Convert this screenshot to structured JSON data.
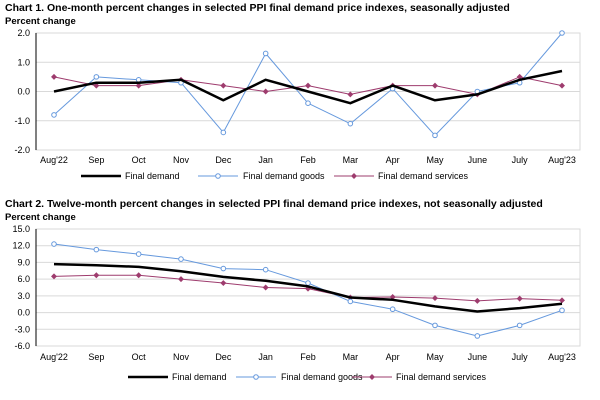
{
  "colors": {
    "total": "#000000",
    "goods": "#6699dd",
    "services": "#9e3c6e",
    "grid": "#d9d9d9",
    "axis": "#000000"
  },
  "chart_data": [
    {
      "type": "line",
      "title": "Chart 1. One-month percent changes in selected PPI final demand price indexes, seasonally adjusted",
      "ylabel": "Percent change",
      "categories": [
        "Aug'22",
        "Sep",
        "Oct",
        "Nov",
        "Dec",
        "Jan",
        "Feb",
        "Mar",
        "Apr",
        "May",
        "June",
        "July",
        "Aug'23"
      ],
      "ylim": [
        -2.0,
        2.0
      ],
      "yticks": [
        "2.0",
        "1.0",
        "0.0",
        "-1.0",
        "-2.0"
      ],
      "yticks_values": [
        2,
        1,
        0,
        -1,
        -2
      ],
      "grid": true,
      "legend_position": "bottom",
      "series": [
        {
          "name": "Final demand",
          "key": "total",
          "values": [
            0.0,
            0.3,
            0.3,
            0.4,
            -0.3,
            0.4,
            0.0,
            -0.4,
            0.2,
            -0.3,
            -0.1,
            0.4,
            0.7
          ]
        },
        {
          "name": "Final demand goods",
          "key": "goods",
          "values": [
            -0.8,
            0.5,
            0.4,
            0.3,
            -1.4,
            1.3,
            -0.4,
            -1.1,
            0.1,
            -1.5,
            0.0,
            0.3,
            2.0
          ]
        },
        {
          "name": "Final demand services",
          "key": "services",
          "values": [
            0.5,
            0.2,
            0.2,
            0.4,
            0.2,
            0.0,
            0.2,
            -0.1,
            0.2,
            0.2,
            -0.1,
            0.5,
            0.2
          ]
        }
      ]
    },
    {
      "type": "line",
      "title": "Chart 2. Twelve-month percent changes in selected PPI final demand price indexes, not seasonally adjusted",
      "ylabel": "Percent change",
      "categories": [
        "Aug'22",
        "Sep",
        "Oct",
        "Nov",
        "Dec",
        "Jan",
        "Feb",
        "Mar",
        "Apr",
        "May",
        "June",
        "July",
        "Aug'23"
      ],
      "ylim": [
        -6.0,
        15.0
      ],
      "yticks": [
        "15.0",
        "12.0",
        "9.0",
        "6.0",
        "3.0",
        "0.0",
        "-3.0",
        "-6.0"
      ],
      "yticks_values": [
        15,
        12,
        9,
        6,
        3,
        0,
        -3,
        -6
      ],
      "grid": true,
      "legend_position": "bottom",
      "series": [
        {
          "name": "Final demand",
          "key": "total",
          "values": [
            8.7,
            8.5,
            8.2,
            7.4,
            6.4,
            5.7,
            4.7,
            2.7,
            2.3,
            1.1,
            0.2,
            0.8,
            1.6
          ]
        },
        {
          "name": "Final demand goods",
          "key": "goods",
          "values": [
            12.3,
            11.3,
            10.5,
            9.6,
            7.9,
            7.7,
            5.3,
            2.0,
            0.6,
            -2.3,
            -4.2,
            -2.3,
            0.4
          ]
        },
        {
          "name": "Final demand services",
          "key": "services",
          "values": [
            6.5,
            6.7,
            6.7,
            6.0,
            5.3,
            4.5,
            4.3,
            2.7,
            2.8,
            2.6,
            2.1,
            2.5,
            2.2
          ]
        }
      ]
    }
  ]
}
